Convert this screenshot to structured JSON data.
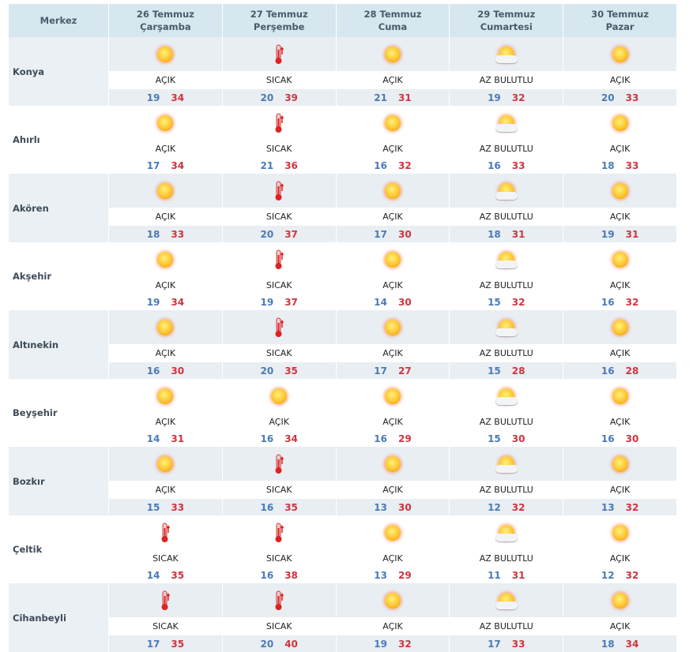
{
  "header": {
    "merkez": "Merkez",
    "days": [
      {
        "date": "26 Temmuz",
        "weekday": "Çarşamba"
      },
      {
        "date": "27 Temmuz",
        "weekday": "Perşembe"
      },
      {
        "date": "28 Temmuz",
        "weekday": "Cuma"
      },
      {
        "date": "29 Temmuz",
        "weekday": "Cumartesi"
      },
      {
        "date": "30 Temmuz",
        "weekday": "Pazar"
      }
    ]
  },
  "colors": {
    "low": "#4a7ab8",
    "high": "#d0343f",
    "header_bg": "#d7e7ef",
    "row_bg": "#e9eef2"
  },
  "rows": [
    {
      "city": "Konya",
      "days": [
        {
          "icon": "sun-icon",
          "cond": "AÇIK",
          "lo": "19",
          "hi": "34"
        },
        {
          "icon": "thermometer-icon",
          "cond": "SICAK",
          "lo": "20",
          "hi": "39"
        },
        {
          "icon": "sun-icon",
          "cond": "AÇIK",
          "lo": "21",
          "hi": "31"
        },
        {
          "icon": "partly-cloudy-icon",
          "cond": "AZ BULUTLU",
          "lo": "19",
          "hi": "32"
        },
        {
          "icon": "sun-icon",
          "cond": "AÇIK",
          "lo": "20",
          "hi": "33"
        }
      ]
    },
    {
      "city": "Ahırlı",
      "days": [
        {
          "icon": "sun-icon",
          "cond": "AÇIK",
          "lo": "17",
          "hi": "34"
        },
        {
          "icon": "thermometer-icon",
          "cond": "SICAK",
          "lo": "21",
          "hi": "36"
        },
        {
          "icon": "sun-icon",
          "cond": "AÇIK",
          "lo": "16",
          "hi": "32"
        },
        {
          "icon": "partly-cloudy-icon",
          "cond": "AZ BULUTLU",
          "lo": "16",
          "hi": "33"
        },
        {
          "icon": "sun-icon",
          "cond": "AÇIK",
          "lo": "18",
          "hi": "33"
        }
      ]
    },
    {
      "city": "Akören",
      "days": [
        {
          "icon": "sun-icon",
          "cond": "AÇIK",
          "lo": "18",
          "hi": "33"
        },
        {
          "icon": "thermometer-icon",
          "cond": "SICAK",
          "lo": "20",
          "hi": "37"
        },
        {
          "icon": "sun-icon",
          "cond": "AÇIK",
          "lo": "17",
          "hi": "30"
        },
        {
          "icon": "partly-cloudy-icon",
          "cond": "AZ BULUTLU",
          "lo": "18",
          "hi": "31"
        },
        {
          "icon": "sun-icon",
          "cond": "AÇIK",
          "lo": "19",
          "hi": "31"
        }
      ]
    },
    {
      "city": "Akşehir",
      "days": [
        {
          "icon": "sun-icon",
          "cond": "AÇIK",
          "lo": "19",
          "hi": "34"
        },
        {
          "icon": "thermometer-icon",
          "cond": "SICAK",
          "lo": "19",
          "hi": "37"
        },
        {
          "icon": "sun-icon",
          "cond": "AÇIK",
          "lo": "14",
          "hi": "30"
        },
        {
          "icon": "partly-cloudy-icon",
          "cond": "AZ BULUTLU",
          "lo": "15",
          "hi": "32"
        },
        {
          "icon": "sun-icon",
          "cond": "AÇIK",
          "lo": "16",
          "hi": "32"
        }
      ]
    },
    {
      "city": "Altınekin",
      "days": [
        {
          "icon": "sun-icon",
          "cond": "AÇIK",
          "lo": "16",
          "hi": "30"
        },
        {
          "icon": "thermometer-icon",
          "cond": "SICAK",
          "lo": "20",
          "hi": "35"
        },
        {
          "icon": "sun-icon",
          "cond": "AÇIK",
          "lo": "17",
          "hi": "27"
        },
        {
          "icon": "partly-cloudy-icon",
          "cond": "AZ BULUTLU",
          "lo": "15",
          "hi": "28"
        },
        {
          "icon": "sun-icon",
          "cond": "AÇIK",
          "lo": "16",
          "hi": "28"
        }
      ]
    },
    {
      "city": "Beyşehir",
      "days": [
        {
          "icon": "sun-icon",
          "cond": "AÇIK",
          "lo": "14",
          "hi": "31"
        },
        {
          "icon": "sun-icon",
          "cond": "AÇIK",
          "lo": "16",
          "hi": "34"
        },
        {
          "icon": "sun-icon",
          "cond": "AÇIK",
          "lo": "16",
          "hi": "29"
        },
        {
          "icon": "partly-cloudy-icon",
          "cond": "AZ BULUTLU",
          "lo": "15",
          "hi": "30"
        },
        {
          "icon": "sun-icon",
          "cond": "AÇIK",
          "lo": "16",
          "hi": "30"
        }
      ]
    },
    {
      "city": "Bozkır",
      "days": [
        {
          "icon": "sun-icon",
          "cond": "AÇIK",
          "lo": "15",
          "hi": "33"
        },
        {
          "icon": "thermometer-icon",
          "cond": "SICAK",
          "lo": "16",
          "hi": "35"
        },
        {
          "icon": "sun-icon",
          "cond": "AÇIK",
          "lo": "13",
          "hi": "30"
        },
        {
          "icon": "partly-cloudy-icon",
          "cond": "AZ BULUTLU",
          "lo": "12",
          "hi": "32"
        },
        {
          "icon": "sun-icon",
          "cond": "AÇIK",
          "lo": "13",
          "hi": "32"
        }
      ]
    },
    {
      "city": "Çeltik",
      "days": [
        {
          "icon": "thermometer-icon",
          "cond": "SICAK",
          "lo": "14",
          "hi": "35"
        },
        {
          "icon": "thermometer-icon",
          "cond": "SICAK",
          "lo": "16",
          "hi": "38"
        },
        {
          "icon": "sun-icon",
          "cond": "AÇIK",
          "lo": "13",
          "hi": "29"
        },
        {
          "icon": "partly-cloudy-icon",
          "cond": "AZ BULUTLU",
          "lo": "11",
          "hi": "31"
        },
        {
          "icon": "sun-icon",
          "cond": "AÇIK",
          "lo": "12",
          "hi": "32"
        }
      ]
    },
    {
      "city": "Cihanbeyli",
      "days": [
        {
          "icon": "thermometer-icon",
          "cond": "SICAK",
          "lo": "17",
          "hi": "35"
        },
        {
          "icon": "thermometer-icon",
          "cond": "SICAK",
          "lo": "20",
          "hi": "40"
        },
        {
          "icon": "sun-icon",
          "cond": "AÇIK",
          "lo": "19",
          "hi": "32"
        },
        {
          "icon": "partly-cloudy-icon",
          "cond": "AZ BULUTLU",
          "lo": "17",
          "hi": "33"
        },
        {
          "icon": "sun-icon",
          "cond": "AÇIK",
          "lo": "18",
          "hi": "34"
        }
      ]
    }
  ]
}
